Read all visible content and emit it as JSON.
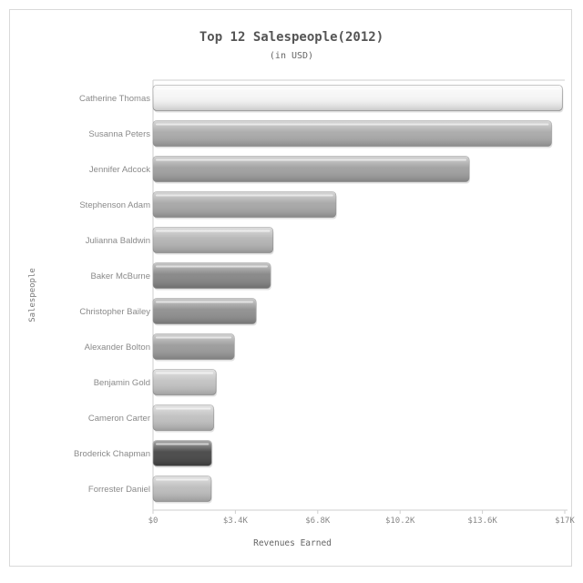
{
  "chart_data": {
    "type": "bar",
    "orientation": "horizontal",
    "title": "Top 12 Salespeople(2012)",
    "subtitle": "(in USD)",
    "xlabel": "Revenues Earned",
    "ylabel": "Salespeople",
    "categories": [
      "Catherine Thomas",
      "Susanna Peters",
      "Jennifer Adcock",
      "Stephenson Adam",
      "Julianna Baldwin",
      "Baker McBurne",
      "Christopher Bailey",
      "Alexander Bolton",
      "Benjamin Gold",
      "Cameron Carter",
      "Broderick Chapman",
      "Forrester Daniel"
    ],
    "values": [
      16900,
      16450,
      13050,
      7550,
      4950,
      4850,
      4250,
      3350,
      2600,
      2500,
      2420,
      2400
    ],
    "xlim": [
      0,
      17000
    ],
    "xticks": [
      "$0",
      "$3.4K",
      "$6.8K",
      "$10.2K",
      "$13.6K",
      "$17K"
    ],
    "bar_colors": [
      "#f5f5f5",
      "#a9a9a9",
      "#9f9f9f",
      "#a6a6a6",
      "#b4b4b4",
      "#858585",
      "#8e8e8e",
      "#9a9a9a",
      "#c2c2c2",
      "#c0c0c0",
      "#454545",
      "#bcbcbc"
    ],
    "grid": false,
    "legend": "none"
  }
}
